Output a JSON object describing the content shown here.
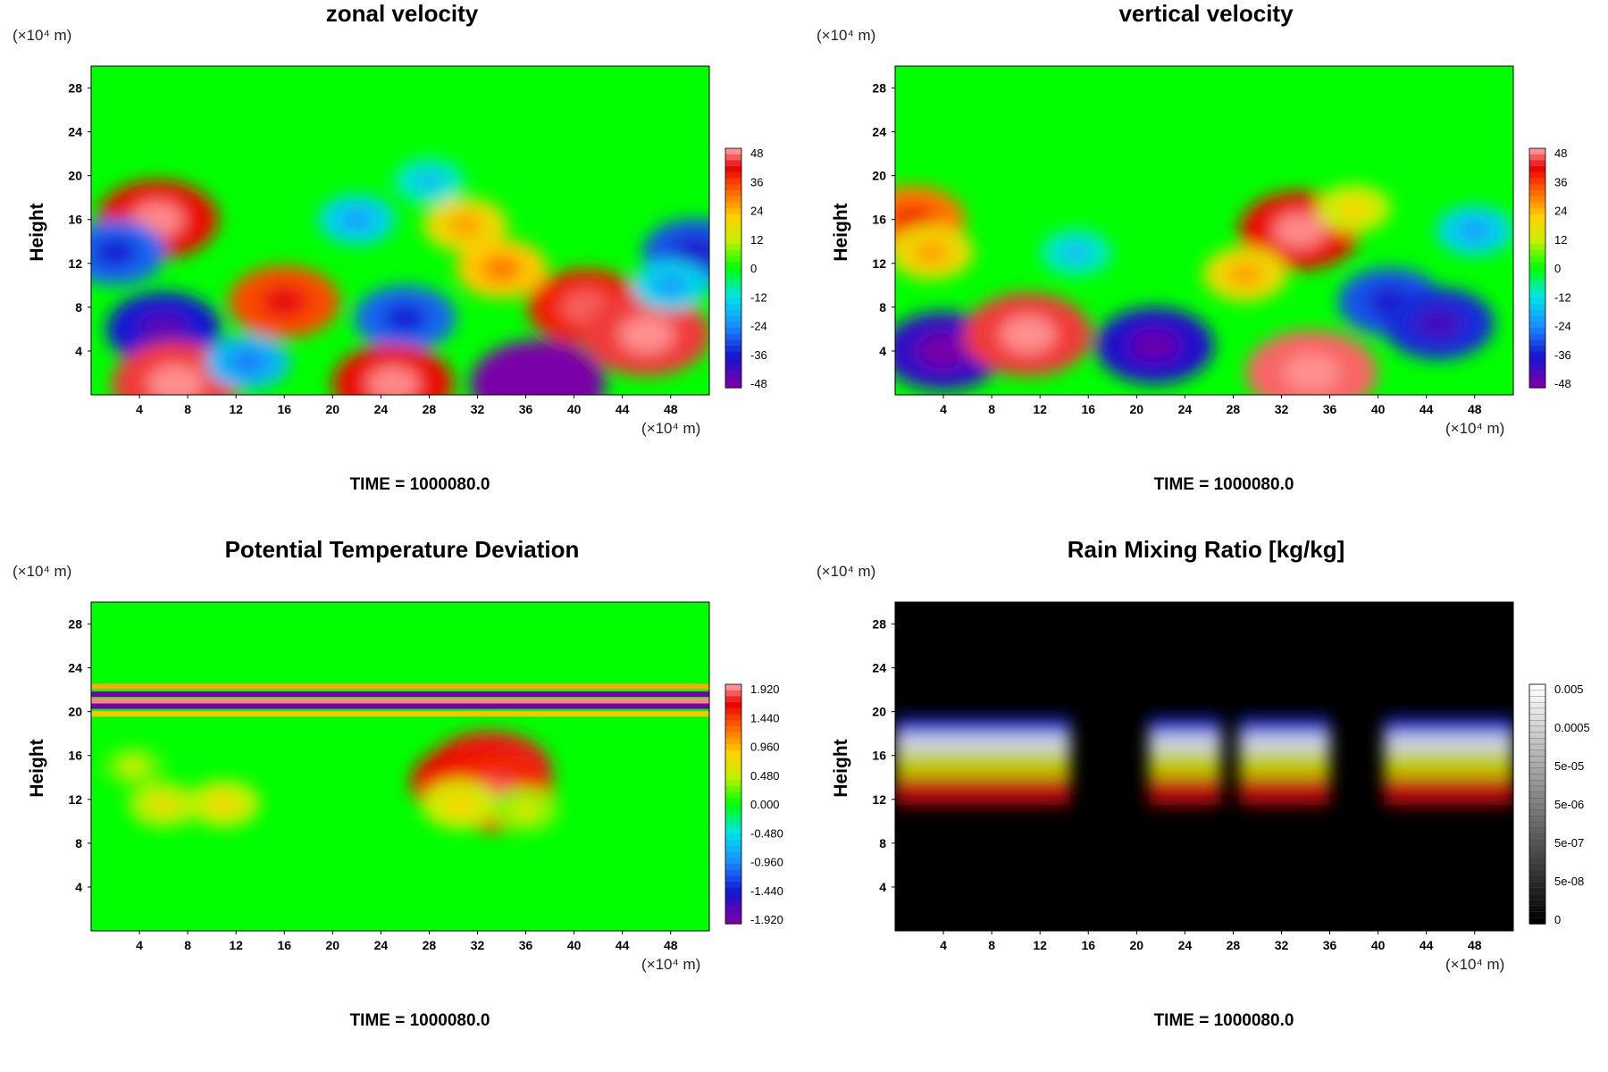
{
  "axis_unit_label": "(×10⁴ m)",
  "chart_data": [
    {
      "type": "heatmap",
      "title": "zonal velocity",
      "ylabel": "Height",
      "xlabel": "",
      "x_ticks": [
        "4",
        "8",
        "12",
        "16",
        "20",
        "24",
        "28",
        "32",
        "36",
        "40",
        "44",
        "48"
      ],
      "y_ticks": [
        "4",
        "8",
        "12",
        "16",
        "20",
        "24",
        "28"
      ],
      "xlim": [
        0,
        51.2
      ],
      "ylim": [
        0,
        30
      ],
      "colorbar": {
        "labels": [
          "48",
          "36",
          "24",
          "12",
          "0",
          "-12",
          "-24",
          "-36",
          "-48"
        ],
        "scale": "rainbow"
      },
      "annotation": "TIME = 1000080.0",
      "blobs": [
        {
          "x": 6,
          "y": 6,
          "value": -36
        },
        {
          "x": 7,
          "y": 1,
          "value": 44
        },
        {
          "x": 16,
          "y": 8.5,
          "value": 34
        },
        {
          "x": 26,
          "y": 7,
          "value": -28
        },
        {
          "x": 25,
          "y": 1,
          "value": 40
        },
        {
          "x": 41,
          "y": 8,
          "value": 38
        },
        {
          "x": 46,
          "y": 5.5,
          "value": 44
        },
        {
          "x": 5.5,
          "y": 16,
          "value": 40
        },
        {
          "x": 37,
          "y": 1,
          "value": -48
        },
        {
          "x": 50,
          "y": 13,
          "value": -30
        },
        {
          "x": 2,
          "y": 13,
          "value": -28
        },
        {
          "x": 31,
          "y": 15.5,
          "value": 18
        },
        {
          "x": 22,
          "y": 16,
          "value": -14
        },
        {
          "x": 34,
          "y": 11.5,
          "value": 22
        },
        {
          "x": 13,
          "y": 3,
          "value": -18
        },
        {
          "x": 48,
          "y": 10,
          "value": -14
        },
        {
          "x": 28,
          "y": 19.5,
          "value": -10
        }
      ]
    },
    {
      "type": "heatmap",
      "title": "vertical velocity",
      "ylabel": "Height",
      "xlabel": "",
      "x_ticks": [
        "4",
        "8",
        "12",
        "16",
        "20",
        "24",
        "28",
        "32",
        "36",
        "40",
        "44",
        "48"
      ],
      "y_ticks": [
        "4",
        "8",
        "12",
        "16",
        "20",
        "24",
        "28"
      ],
      "xlim": [
        0,
        51.2
      ],
      "ylim": [
        0,
        30
      ],
      "colorbar": {
        "labels": [
          "48",
          "36",
          "24",
          "12",
          "0",
          "-12",
          "-24",
          "-36",
          "-48"
        ],
        "scale": "rainbow"
      },
      "annotation": "TIME = 1000080.0",
      "blobs": [
        {
          "x": 4,
          "y": 4,
          "value": -40
        },
        {
          "x": 11,
          "y": 5.5,
          "value": 44
        },
        {
          "x": 21.5,
          "y": 4.5,
          "value": -38
        },
        {
          "x": 34.5,
          "y": 2,
          "value": 46
        },
        {
          "x": 41,
          "y": 8.5,
          "value": -30
        },
        {
          "x": 45,
          "y": 6.5,
          "value": -34
        },
        {
          "x": 33.5,
          "y": 15,
          "value": 40
        },
        {
          "x": 1.5,
          "y": 16,
          "value": 30
        },
        {
          "x": 3,
          "y": 13,
          "value": 18
        },
        {
          "x": 29,
          "y": 11,
          "value": 18
        },
        {
          "x": 48,
          "y": 15,
          "value": -14
        },
        {
          "x": 15,
          "y": 13,
          "value": -10
        },
        {
          "x": 38,
          "y": 17,
          "value": 12
        }
      ]
    },
    {
      "type": "heatmap",
      "title": "Potential Temperature Deviation",
      "ylabel": "Height",
      "xlabel": "",
      "x_ticks": [
        "4",
        "8",
        "12",
        "16",
        "20",
        "24",
        "28",
        "32",
        "36",
        "40",
        "44",
        "48"
      ],
      "y_ticks": [
        "4",
        "8",
        "12",
        "16",
        "20",
        "24",
        "28"
      ],
      "xlim": [
        0,
        51.2
      ],
      "ylim": [
        0,
        30
      ],
      "colorbar": {
        "labels": [
          "1.920",
          "1.440",
          "0.960",
          "0.480",
          "0.000",
          "-0.480",
          "-0.960",
          "-1.440",
          "-1.920"
        ],
        "scale": "rainbow"
      },
      "annotation": "TIME = 1000080.0",
      "bands": [
        {
          "y": 22.3,
          "value": 1.0
        },
        {
          "y": 21.6,
          "value": -1.9
        },
        {
          "y": 21.0,
          "value": 1.9
        },
        {
          "y": 20.5,
          "value": -1.9
        },
        {
          "y": 19.8,
          "value": 0.9
        }
      ],
      "blobs": [
        {
          "x": 33,
          "y": 14.5,
          "value": 1.7
        },
        {
          "x": 31.5,
          "y": 13.5,
          "value": 1.6
        },
        {
          "x": 33.5,
          "y": 12.5,
          "value": 1.5
        },
        {
          "x": 30.5,
          "y": 11.5,
          "value": 0.5
        },
        {
          "x": 6,
          "y": 11.5,
          "value": 0.4
        },
        {
          "x": 11,
          "y": 11.6,
          "value": 0.45
        },
        {
          "x": 3.5,
          "y": 15,
          "value": 0.2
        },
        {
          "x": 36,
          "y": 11,
          "value": 0.3
        }
      ]
    },
    {
      "type": "heatmap",
      "title": "Rain Mixing Ratio [kg/kg]",
      "ylabel": "Height",
      "xlabel": "",
      "x_ticks": [
        "4",
        "8",
        "12",
        "16",
        "20",
        "24",
        "28",
        "32",
        "36",
        "40",
        "44",
        "48"
      ],
      "y_ticks": [
        "4",
        "8",
        "12",
        "16",
        "20",
        "24",
        "28"
      ],
      "xlim": [
        0,
        51.2
      ],
      "ylim": [
        0,
        30
      ],
      "colorbar": {
        "labels": [
          "0.005",
          "0.0005",
          "5e-05",
          "5e-06",
          "5e-07",
          "5e-08",
          "0"
        ],
        "scale": "gray"
      },
      "annotation": "TIME = 1000080.0",
      "layers": [
        {
          "label": "blue",
          "color": "#1a2fd6",
          "ytop": 19.5,
          "ybot": 17.2
        },
        {
          "label": "white",
          "color": "#d8dcf0",
          "ytop": 18.0,
          "ybot": 16.0
        },
        {
          "label": "yellow",
          "color": "#c8d400",
          "ytop": 16.4,
          "ybot": 13.8
        },
        {
          "label": "red",
          "color": "#c81010",
          "ytop": 14.0,
          "ybot": 11.5
        }
      ],
      "segments": [
        [
          0,
          14.5
        ],
        [
          21,
          27
        ],
        [
          28.5,
          36
        ],
        [
          40.5,
          51.2
        ]
      ]
    }
  ]
}
